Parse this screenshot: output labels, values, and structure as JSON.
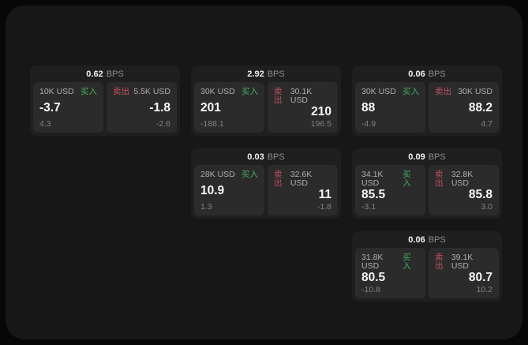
{
  "labels": {
    "bps_unit": "BPS",
    "buy": "买入",
    "sell": "卖出"
  },
  "colors": {
    "buy_green": "#43b05c",
    "sell_red": "#c44f60",
    "window_bg": "#171717",
    "card_bg": "#1f1f1f",
    "panel_bg": "#2b2b2b"
  },
  "cards": [
    {
      "bps": "0.62",
      "buy": {
        "amount": "10K USD",
        "price": "-3.7",
        "delta": "4.3"
      },
      "sell": {
        "amount": "5.5K USD",
        "price": "-1.8",
        "delta": "-2.6"
      }
    },
    {
      "bps": "2.92",
      "buy": {
        "amount": "30K USD",
        "price": "201",
        "delta": "-188.1"
      },
      "sell": {
        "amount": "30.1K USD",
        "price": "210",
        "delta": "196.5"
      }
    },
    {
      "bps": "0.06",
      "buy": {
        "amount": "30K USD",
        "price": "88",
        "delta": "-4.9"
      },
      "sell": {
        "amount": "30K USD",
        "price": "88.2",
        "delta": "4.7"
      }
    },
    {
      "bps": "0.03",
      "buy": {
        "amount": "28K USD",
        "price": "10.9",
        "delta": "1.3"
      },
      "sell": {
        "amount": "32.6K USD",
        "price": "11",
        "delta": "-1.8"
      }
    },
    {
      "bps": "0.09",
      "buy": {
        "amount": "34.1K USD",
        "price": "85.5",
        "delta": "-3.1"
      },
      "sell": {
        "amount": "32.8K USD",
        "price": "85.8",
        "delta": "3.0"
      }
    },
    {
      "bps": "0.06",
      "buy": {
        "amount": "31.8K USD",
        "price": "80.5",
        "delta": "-10.8"
      },
      "sell": {
        "amount": "39.1K USD",
        "price": "80.7",
        "delta": "10.2"
      }
    }
  ]
}
